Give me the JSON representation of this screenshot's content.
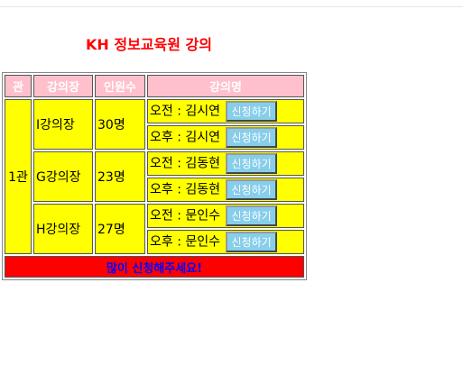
{
  "page": {
    "title": "KH 정보교육원 강의"
  },
  "table": {
    "headers": [
      "관",
      "강의장",
      "인원수",
      "강의명"
    ],
    "hall": "1관",
    "rooms": [
      {
        "name": "I강의장",
        "count": "30명",
        "sessions": [
          {
            "label": "오전 : 김시연",
            "button": "신청하기"
          },
          {
            "label": "오후 : 김시연",
            "button": "신청하기"
          }
        ]
      },
      {
        "name": "G강의장",
        "count": "23명",
        "sessions": [
          {
            "label": "오전 : 김동현",
            "button": "신청하기"
          },
          {
            "label": "오후 : 김동현",
            "button": "신청하기"
          }
        ]
      },
      {
        "name": "H강의장",
        "count": "27명",
        "sessions": [
          {
            "label": "오전 : 문인수",
            "button": "신청하기"
          },
          {
            "label": "오후 : 문인수",
            "button": "신청하기"
          }
        ]
      }
    ],
    "footer": "많이 신청해주세요!"
  },
  "colors": {
    "title": "#ff0000",
    "header_bg": "#ffc0cb",
    "cell_bg": "#ffff00",
    "button_bg": "#87ceeb",
    "footer_bg": "#ff0000",
    "footer_text": "#0000ff"
  }
}
